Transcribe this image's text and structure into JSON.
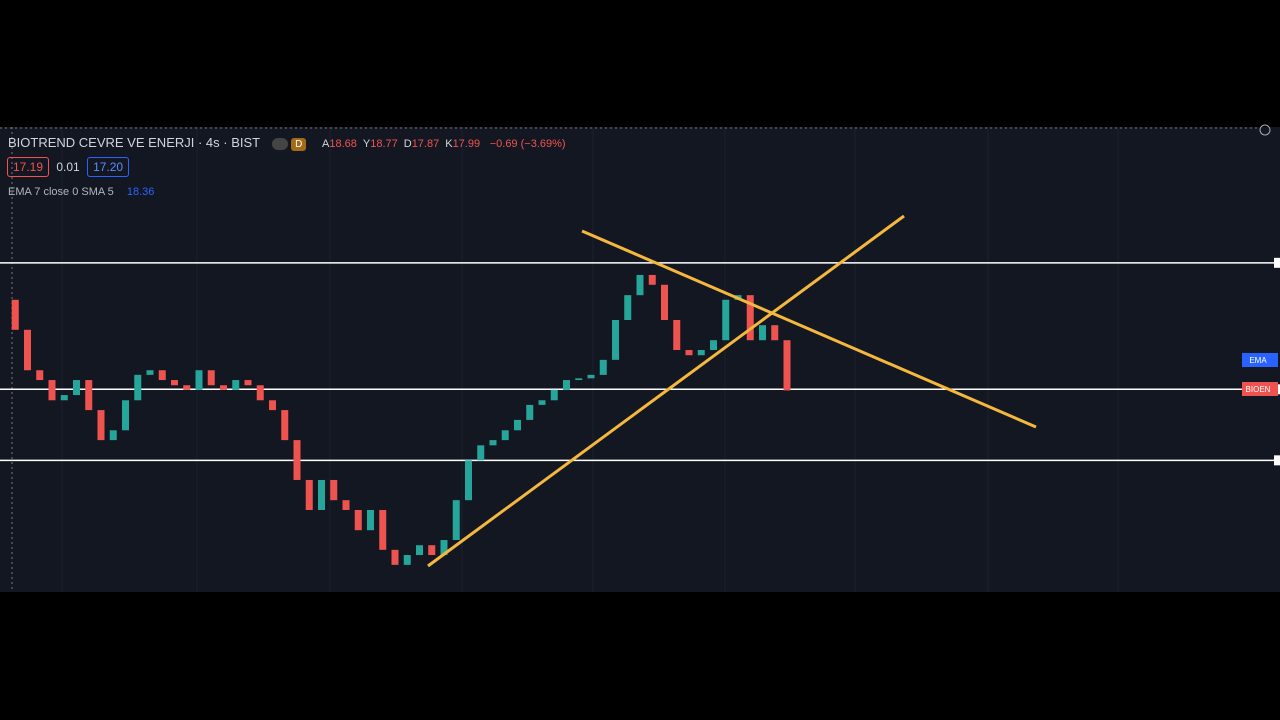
{
  "header": {
    "symbol": "BIOTREND CEVRE VE ENERJI · 4s · BIST",
    "interval_badge": "D",
    "ohlc": [
      {
        "key": "A",
        "value": "18.68"
      },
      {
        "key": "Y",
        "value": "18.77"
      },
      {
        "key": "D",
        "value": "17.87"
      },
      {
        "key": "K",
        "value": "17.99"
      }
    ],
    "change": "−0.69 (−3.69%)",
    "bid": "17.19",
    "spread": "0.01",
    "ask": "17.20",
    "indicator": "EMA 7 close 0 SMA 5",
    "indicator_value": "18.36"
  },
  "chart_data": {
    "type": "candlestick",
    "ylim": [
      14.5,
      22.5
    ],
    "close": [
      19.56,
      19.04,
      18.34,
      18.17,
      17.82,
      17.91,
      18.17,
      17.65,
      17.13,
      17.3,
      17.82,
      18.26,
      18.34,
      18.17,
      18.08,
      18.0,
      18.34,
      18.08,
      18.0,
      18.17,
      18.08,
      17.82,
      17.65,
      17.13,
      16.44,
      15.92,
      16.44,
      16.09,
      15.92,
      15.57,
      15.92,
      15.23,
      14.97,
      15.14,
      15.31,
      15.14,
      15.4,
      16.09,
      16.78,
      17.04,
      17.13,
      17.3,
      17.48,
      17.74,
      17.82,
      18.0,
      18.17,
      18.2,
      18.26,
      18.52,
      19.21,
      19.64,
      19.99,
      19.82,
      19.21,
      18.69,
      18.6,
      18.69,
      18.86,
      19.56,
      19.64,
      18.86,
      19.12,
      18.86,
      17.99
    ],
    "levels": [
      20.2,
      18.01,
      16.78
    ],
    "price_labels": [
      "EMA",
      "BIOEN"
    ]
  }
}
